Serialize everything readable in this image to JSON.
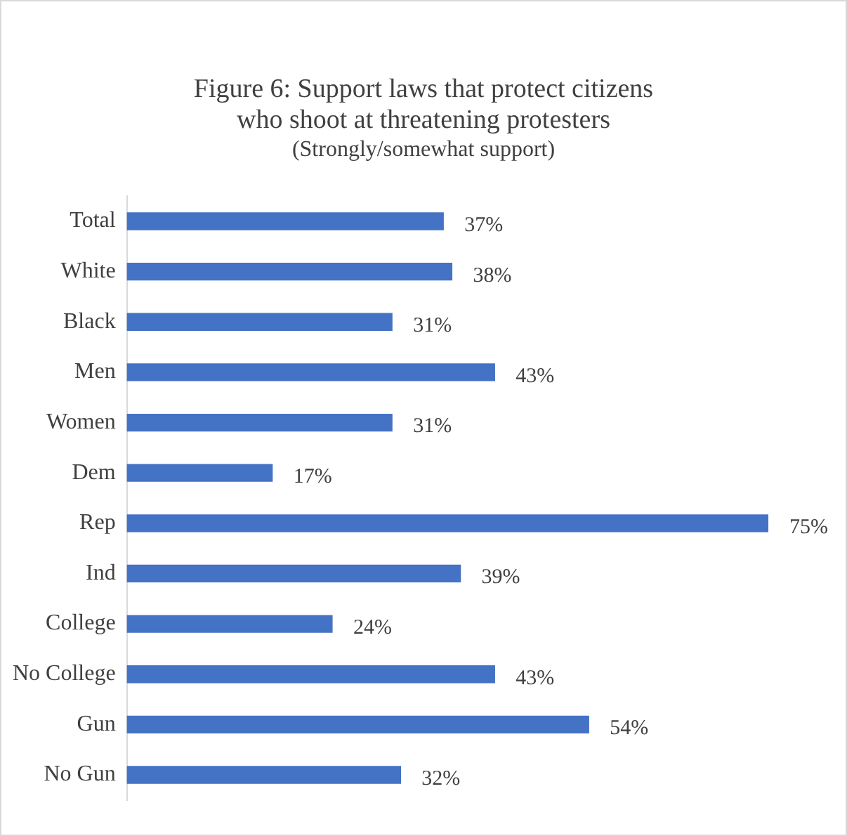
{
  "chart_data": {
    "type": "bar",
    "orientation": "horizontal",
    "title": "Figure 6:  Support laws that protect citizens who shoot at threatening protesters",
    "subtitle": "(Strongly/somewhat support)",
    "categories": [
      "Total",
      "White",
      "Black",
      "Men",
      "Women",
      "Dem",
      "Rep",
      "Ind",
      "College",
      "No College",
      "Gun",
      "No Gun"
    ],
    "values": [
      37,
      38,
      31,
      43,
      31,
      17,
      75,
      39,
      24,
      43,
      54,
      32
    ],
    "value_labels": [
      "37%",
      "38%",
      "31%",
      "43%",
      "31%",
      "17%",
      "75%",
      "39%",
      "24%",
      "43%",
      "54%",
      "32%"
    ],
    "color": "#4472c4",
    "grid": false,
    "legend": false
  }
}
